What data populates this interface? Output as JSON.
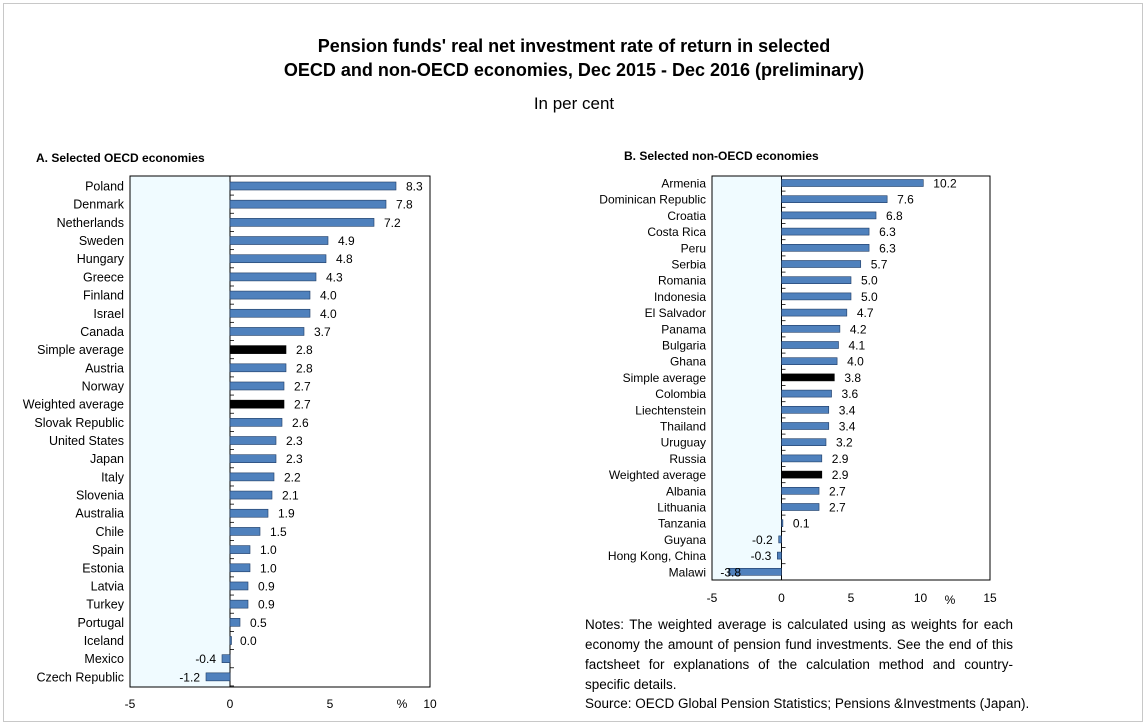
{
  "title_line1": "Pension funds' real net investment rate of return in selected",
  "title_line2": "OECD and non-OECD economies, Dec 2015 - Dec 2016 (preliminary)",
  "subtitle": "In per cent",
  "notes": "Notes: The weighted average is calculated using as weights for each economy the amount of pension fund investments. See the end of this factsheet for explanations of the calculation method and country-specific details.",
  "source": "Source: OECD Global Pension Statistics; Pensions &Investments (Japan).",
  "colors": {
    "bar": "#4f81bd",
    "highlight": "#000000",
    "plot_bg": "#f0fbff"
  },
  "chart_data": [
    {
      "type": "bar",
      "orientation": "horizontal",
      "title": "A. Selected OECD economies",
      "unit_label": "%",
      "xlim": [
        -5,
        10
      ],
      "xticks": [
        -5,
        0,
        5,
        10
      ],
      "highlight": [
        "Simple average",
        "Weighted average"
      ],
      "categories": [
        "Poland",
        "Denmark",
        "Netherlands",
        "Sweden",
        "Hungary",
        "Greece",
        "Finland",
        "Israel",
        "Canada",
        "Simple average",
        "Austria",
        "Norway",
        "Weighted average",
        "Slovak Republic",
        "United States",
        "Japan",
        "Italy",
        "Slovenia",
        "Australia",
        "Chile",
        "Spain",
        "Estonia",
        "Latvia",
        "Turkey",
        "Portugal",
        "Iceland",
        "Mexico",
        "Czech Republic"
      ],
      "values": [
        8.3,
        7.8,
        7.2,
        4.9,
        4.8,
        4.3,
        4.0,
        4.0,
        3.7,
        2.8,
        2.8,
        2.7,
        2.7,
        2.6,
        2.3,
        2.3,
        2.2,
        2.1,
        1.9,
        1.5,
        1.0,
        1.0,
        0.9,
        0.9,
        0.5,
        0.0,
        -0.4,
        -1.2
      ],
      "labels": [
        "8.3",
        "7.8",
        "7.2",
        "4.9",
        "4.8",
        "4.3",
        "4.0",
        "4.0",
        "3.7",
        "2.8",
        "2.8",
        "2.7",
        "2.7",
        "2.6",
        "2.3",
        "2.3",
        "2.2",
        "2.1",
        "1.9",
        "1.5",
        "1.0",
        "1.0",
        "0.9",
        "0.9",
        "0.5",
        "0.0",
        "-0.4",
        "-1.2"
      ]
    },
    {
      "type": "bar",
      "orientation": "horizontal",
      "title": "B. Selected non-OECD economies",
      "unit_label": "%",
      "xlim": [
        -5,
        15
      ],
      "xticks": [
        -5,
        0,
        5,
        10,
        15
      ],
      "highlight": [
        "Simple average",
        "Weighted average"
      ],
      "categories": [
        "Armenia",
        "Dominican Republic",
        "Croatia",
        "Costa Rica",
        "Peru",
        "Serbia",
        "Romania",
        "Indonesia",
        "El Salvador",
        "Panama",
        "Bulgaria",
        "Ghana",
        "Simple average",
        "Colombia",
        "Liechtenstein",
        "Thailand",
        "Uruguay",
        "Russia",
        "Weighted average",
        "Albania",
        "Lithuania",
        "Tanzania",
        "Guyana",
        "Hong Kong, China",
        "Malawi"
      ],
      "values": [
        10.2,
        7.6,
        6.8,
        6.3,
        6.3,
        5.7,
        5.0,
        5.0,
        4.7,
        4.2,
        4.1,
        4.0,
        3.8,
        3.6,
        3.4,
        3.4,
        3.2,
        2.9,
        2.9,
        2.7,
        2.7,
        0.1,
        -0.2,
        -0.3,
        -3.8
      ],
      "labels": [
        "10.2",
        "7.6",
        "6.8",
        "6.3",
        "6.3",
        "5.7",
        "5.0",
        "5.0",
        "4.7",
        "4.2",
        "4.1",
        "4.0",
        "3.8",
        "3.6",
        "3.4",
        "3.4",
        "3.2",
        "2.9",
        "2.9",
        "2.7",
        "2.7",
        "0.1",
        "-0.2",
        "-0.3",
        "-3.8"
      ]
    }
  ]
}
